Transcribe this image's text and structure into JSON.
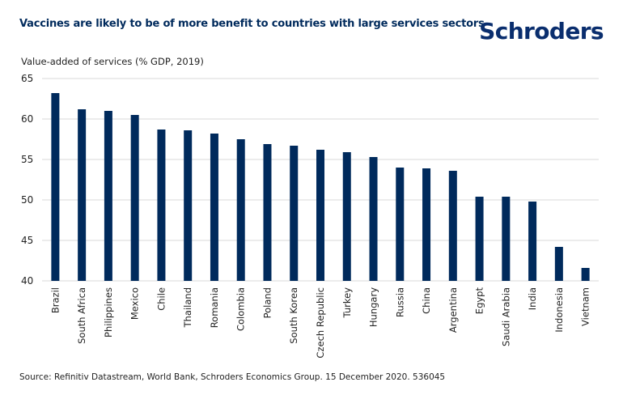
{
  "header": {
    "title": "Vaccines are likely to be of more benefit to countries with large services sectors",
    "logo_text": "Schroders"
  },
  "footer": {
    "source": "Source: Refinitiv Datastream, World Bank, Schroders Economics Group. 15 December 2020. 536045"
  },
  "colors": {
    "bar": "#002a5c",
    "title": "#002a5c",
    "logo": "#0a2e6e",
    "grid": "#d9d9d9"
  },
  "chart_data": {
    "type": "bar",
    "title": "Vaccines are likely to be of more benefit to countries with large services sectors",
    "xlabel": "",
    "ylabel": "Value-added of services (% GDP, 2019)",
    "ylim": [
      40,
      65
    ],
    "yticks": [
      40,
      45,
      50,
      55,
      60,
      65
    ],
    "grid": true,
    "legend": "none",
    "categories": [
      "Brazil",
      "South Africa",
      "Philippines",
      "Mexico",
      "Chile",
      "Thailand",
      "Romania",
      "Colombia",
      "Poland",
      "South Korea",
      "Czech Republic",
      "Turkey",
      "Hungary",
      "Russia",
      "China",
      "Argentina",
      "Egypt",
      "Saudi Arabia",
      "India",
      "Indonesia",
      "Vietnam"
    ],
    "values": [
      63.2,
      61.2,
      61.0,
      60.5,
      58.7,
      58.6,
      58.2,
      57.5,
      56.9,
      56.7,
      56.2,
      55.9,
      55.3,
      54.0,
      53.9,
      53.6,
      50.4,
      50.4,
      49.8,
      44.2,
      41.6
    ]
  }
}
